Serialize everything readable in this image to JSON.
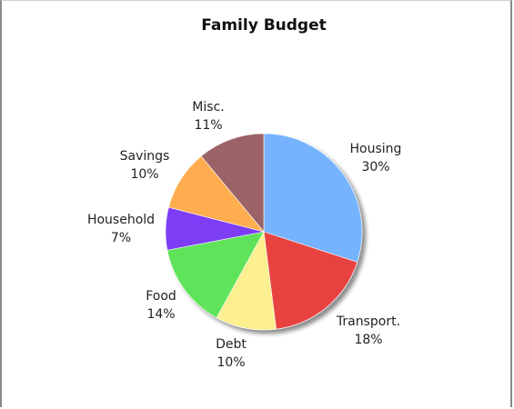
{
  "chart_data": {
    "type": "pie",
    "title": "Family Budget",
    "slices": [
      {
        "label": "Housing",
        "value": 30,
        "value_label": "30%",
        "color": "#74b3ff"
      },
      {
        "label": "Transport.",
        "value": 18,
        "value_label": "18%",
        "color": "#e8423f"
      },
      {
        "label": "Debt",
        "value": 10,
        "value_label": "10%",
        "color": "#fbef8f"
      },
      {
        "label": "Food",
        "value": 14,
        "value_label": "14%",
        "color": "#5fe35a"
      },
      {
        "label": "Household",
        "value": 7,
        "value_label": "7%",
        "color": "#7b3cf5"
      },
      {
        "label": "Savings",
        "value": 10,
        "value_label": "10%",
        "color": "#ffad4f"
      },
      {
        "label": "Misc.",
        "value": 11,
        "value_label": "11%",
        "color": "#9c6466"
      }
    ]
  }
}
